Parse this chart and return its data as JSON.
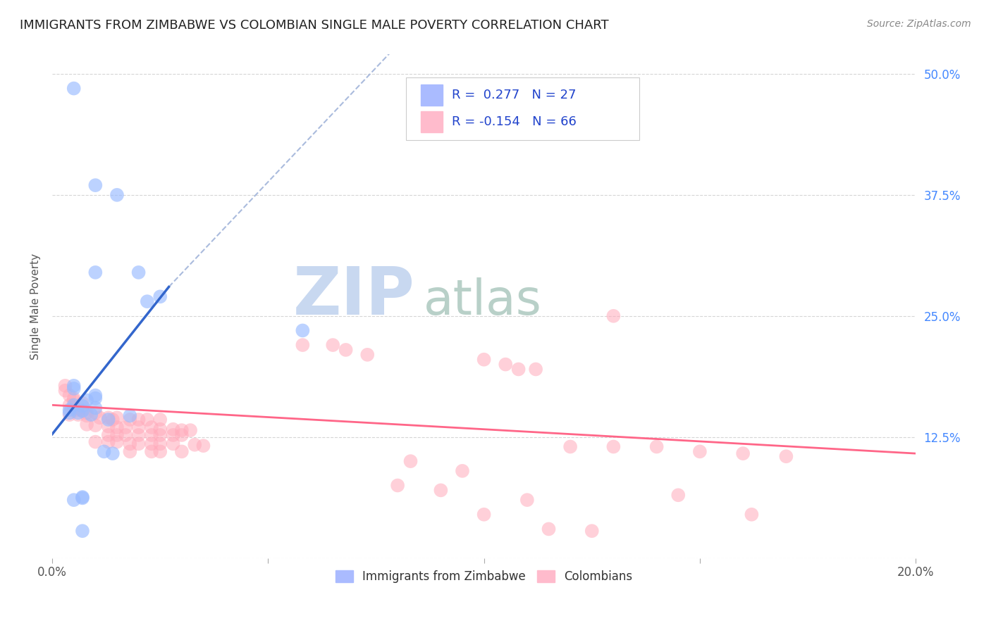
{
  "title": "IMMIGRANTS FROM ZIMBABWE VS COLOMBIAN SINGLE MALE POVERTY CORRELATION CHART",
  "source": "Source: ZipAtlas.com",
  "ylabel": "Single Male Poverty",
  "legend_blue_label": "Immigrants from Zimbabwe",
  "legend_pink_label": "Colombians",
  "blue_scatter": [
    [
      0.005,
      0.485
    ],
    [
      0.01,
      0.385
    ],
    [
      0.015,
      0.375
    ],
    [
      0.01,
      0.295
    ],
    [
      0.02,
      0.295
    ],
    [
      0.025,
      0.27
    ],
    [
      0.022,
      0.265
    ],
    [
      0.058,
      0.235
    ],
    [
      0.005,
      0.178
    ],
    [
      0.005,
      0.175
    ],
    [
      0.01,
      0.168
    ],
    [
      0.01,
      0.165
    ],
    [
      0.008,
      0.163
    ],
    [
      0.005,
      0.158
    ],
    [
      0.007,
      0.157
    ],
    [
      0.01,
      0.155
    ],
    [
      0.004,
      0.153
    ],
    [
      0.007,
      0.152
    ],
    [
      0.004,
      0.15
    ],
    [
      0.006,
      0.15
    ],
    [
      0.009,
      0.148
    ],
    [
      0.018,
      0.147
    ],
    [
      0.013,
      0.143
    ],
    [
      0.012,
      0.11
    ],
    [
      0.014,
      0.108
    ],
    [
      0.007,
      0.063
    ],
    [
      0.007,
      0.062
    ],
    [
      0.005,
      0.06
    ],
    [
      0.007,
      0.028
    ]
  ],
  "pink_scatter": [
    [
      0.003,
      0.178
    ],
    [
      0.003,
      0.173
    ],
    [
      0.004,
      0.168
    ],
    [
      0.005,
      0.165
    ],
    [
      0.005,
      0.163
    ],
    [
      0.007,
      0.16
    ],
    [
      0.004,
      0.158
    ],
    [
      0.005,
      0.155
    ],
    [
      0.006,
      0.153
    ],
    [
      0.007,
      0.152
    ],
    [
      0.008,
      0.15
    ],
    [
      0.01,
      0.15
    ],
    [
      0.004,
      0.148
    ],
    [
      0.006,
      0.148
    ],
    [
      0.008,
      0.147
    ],
    [
      0.011,
      0.145
    ],
    [
      0.013,
      0.145
    ],
    [
      0.014,
      0.143
    ],
    [
      0.015,
      0.145
    ],
    [
      0.018,
      0.143
    ],
    [
      0.02,
      0.143
    ],
    [
      0.022,
      0.143
    ],
    [
      0.025,
      0.143
    ],
    [
      0.008,
      0.138
    ],
    [
      0.01,
      0.137
    ],
    [
      0.013,
      0.136
    ],
    [
      0.015,
      0.135
    ],
    [
      0.017,
      0.135
    ],
    [
      0.02,
      0.135
    ],
    [
      0.023,
      0.135
    ],
    [
      0.025,
      0.133
    ],
    [
      0.028,
      0.133
    ],
    [
      0.03,
      0.132
    ],
    [
      0.032,
      0.132
    ],
    [
      0.013,
      0.127
    ],
    [
      0.015,
      0.127
    ],
    [
      0.017,
      0.127
    ],
    [
      0.02,
      0.127
    ],
    [
      0.023,
      0.127
    ],
    [
      0.025,
      0.127
    ],
    [
      0.028,
      0.127
    ],
    [
      0.03,
      0.127
    ],
    [
      0.01,
      0.12
    ],
    [
      0.013,
      0.12
    ],
    [
      0.015,
      0.12
    ],
    [
      0.018,
      0.118
    ],
    [
      0.02,
      0.118
    ],
    [
      0.023,
      0.118
    ],
    [
      0.025,
      0.118
    ],
    [
      0.028,
      0.118
    ],
    [
      0.033,
      0.117
    ],
    [
      0.035,
      0.116
    ],
    [
      0.018,
      0.11
    ],
    [
      0.023,
      0.11
    ],
    [
      0.025,
      0.11
    ],
    [
      0.03,
      0.11
    ],
    [
      0.058,
      0.22
    ],
    [
      0.065,
      0.22
    ],
    [
      0.068,
      0.215
    ],
    [
      0.073,
      0.21
    ],
    [
      0.1,
      0.205
    ],
    [
      0.105,
      0.2
    ],
    [
      0.108,
      0.195
    ],
    [
      0.112,
      0.195
    ],
    [
      0.13,
      0.25
    ],
    [
      0.08,
      0.075
    ],
    [
      0.09,
      0.07
    ],
    [
      0.095,
      0.09
    ],
    [
      0.083,
      0.1
    ],
    [
      0.115,
      0.03
    ],
    [
      0.125,
      0.028
    ],
    [
      0.1,
      0.045
    ],
    [
      0.11,
      0.06
    ],
    [
      0.12,
      0.115
    ],
    [
      0.13,
      0.115
    ],
    [
      0.14,
      0.115
    ],
    [
      0.15,
      0.11
    ],
    [
      0.16,
      0.108
    ],
    [
      0.17,
      0.105
    ],
    [
      0.145,
      0.065
    ],
    [
      0.162,
      0.045
    ]
  ],
  "blue_line_solid": [
    [
      0.0,
      0.128
    ],
    [
      0.027,
      0.28
    ]
  ],
  "blue_line_dashed": [
    [
      0.027,
      0.28
    ],
    [
      0.08,
      0.53
    ]
  ],
  "pink_line": [
    [
      0.0,
      0.158
    ],
    [
      0.2,
      0.108
    ]
  ],
  "xlim": [
    0.0,
    0.2
  ],
  "ylim": [
    0.0,
    0.52
  ],
  "background_color": "#ffffff",
  "grid_color": "#cccccc",
  "blue_scatter_color": "#99bbff",
  "pink_scatter_color": "#ffaabb",
  "blue_line_color": "#3366cc",
  "pink_line_color": "#ff6688",
  "blue_dashed_color": "#aabbdd",
  "watermark_zip": "ZIP",
  "watermark_atlas": "atlas",
  "watermark_color_zip": "#c8d8f0",
  "watermark_color_atlas": "#c8d8d0"
}
